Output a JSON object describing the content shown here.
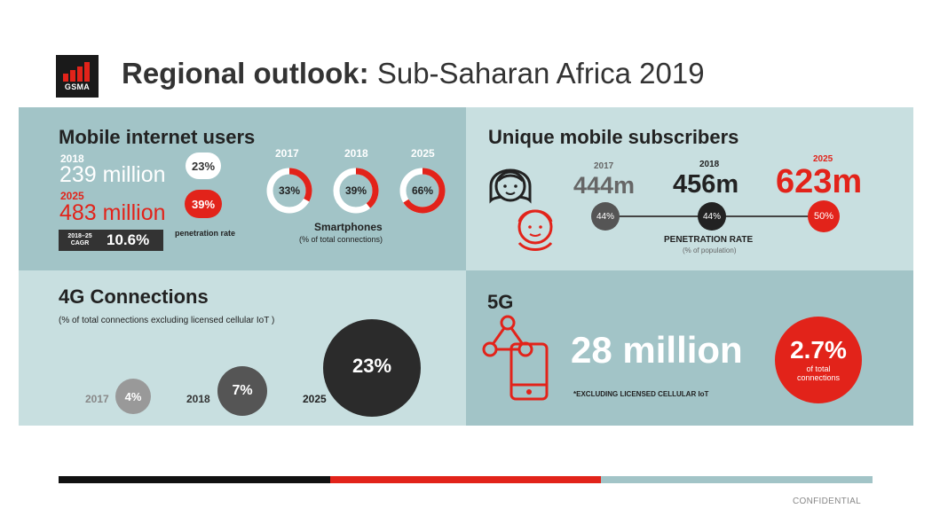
{
  "header": {
    "logo_text": "GSMA",
    "title_bold": "Regional outlook:",
    "title_rest": " Sub-Saharan Africa 2019"
  },
  "mobile_internet": {
    "heading": "Mobile internet users",
    "year_a": "2018",
    "users_a": "239 million",
    "rate_a": "23%",
    "year_b": "2025",
    "users_b": "483 million",
    "rate_b": "39%",
    "cagr_label": "2018–25 CAGR",
    "cagr_value": "10.6%",
    "penetration_label": "penetration rate",
    "smartphones": [
      {
        "year": "2017",
        "value": "33%",
        "fraction": 0.33
      },
      {
        "year": "2018",
        "value": "39%",
        "fraction": 0.39
      },
      {
        "year": "2025",
        "value": "66%",
        "fraction": 0.66
      }
    ],
    "smartphones_label": "Smartphones",
    "smartphones_sub": "(% of total connections)"
  },
  "subscribers": {
    "heading": "Unique mobile subscribers",
    "items": [
      {
        "year": "2017",
        "value": "444m",
        "rate": "44%"
      },
      {
        "year": "2018",
        "value": "456m",
        "rate": "44%"
      },
      {
        "year": "2025",
        "value": "623m",
        "rate": "50%"
      }
    ],
    "rate_label": "PENETRATION RATE",
    "rate_sub": "(% of population)"
  },
  "fourg": {
    "heading": "4G Connections",
    "sub": "(% of total connections excluding licensed cellular IoT )",
    "items": [
      {
        "year": "2017",
        "value": "4%"
      },
      {
        "year": "2018",
        "value": "7%"
      },
      {
        "year": "2025",
        "value": "23%"
      }
    ]
  },
  "fiveg": {
    "heading": "5G",
    "value": "28 million",
    "share": "2.7%",
    "share_sub": "of total connections",
    "note": "*EXCLUDING LICENSED CELLULAR IoT"
  },
  "footer": {
    "confidential": "CONFIDENTIAL"
  },
  "colors": {
    "red": "#e2231a",
    "teal_dark": "#a2c4c7",
    "teal_light": "#c8dfe0"
  }
}
